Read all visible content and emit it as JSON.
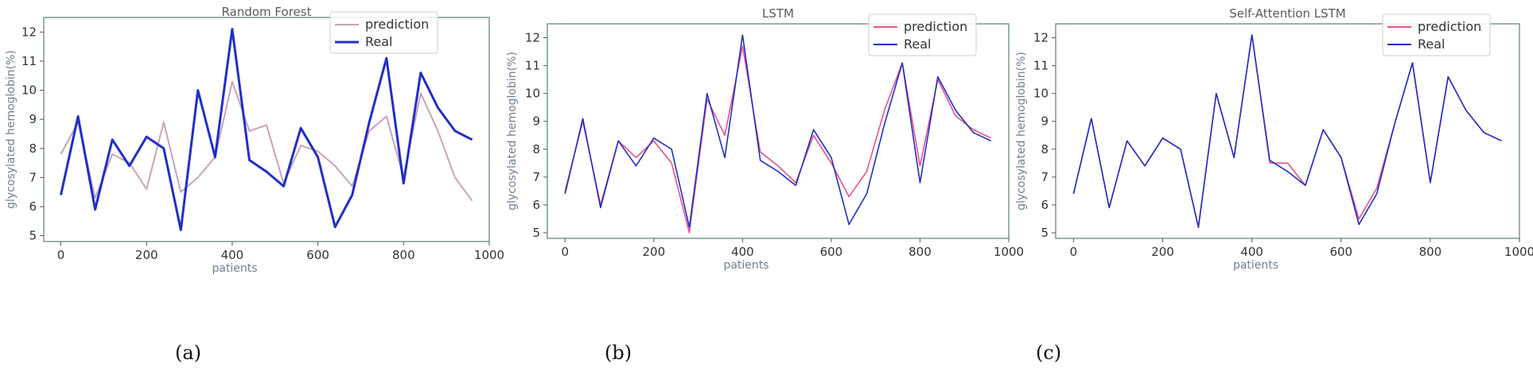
{
  "chart_data": [
    {
      "type": "line",
      "title": "Random Forest",
      "xlabel": "patients",
      "ylabel": "glycosylated hemoglobin(%)",
      "xlim": [
        -40,
        1000
      ],
      "ylim": [
        4.8,
        12.5
      ],
      "xticks": [
        0,
        200,
        400,
        600,
        800,
        1000
      ],
      "yticks": [
        5,
        6,
        7,
        8,
        9,
        10,
        11,
        12
      ],
      "legend": "top-right",
      "x": [
        0,
        40,
        80,
        120,
        160,
        200,
        240,
        280,
        320,
        360,
        400,
        440,
        480,
        520,
        560,
        600,
        640,
        680,
        720,
        760,
        800,
        840,
        880,
        920,
        960
      ],
      "series": [
        {
          "name": "prediction",
          "color": "#c9a3b8",
          "values": [
            7.8,
            8.9,
            6.3,
            7.8,
            7.5,
            6.6,
            8.9,
            6.5,
            7.0,
            7.7,
            10.3,
            8.6,
            8.8,
            6.8,
            8.1,
            7.9,
            7.4,
            6.7,
            8.6,
            9.1,
            7.0,
            9.9,
            8.6,
            7.0,
            6.2
          ],
          "width": 2
        },
        {
          "name": "Real",
          "color": "#1f2fc8",
          "values": [
            6.4,
            9.1,
            5.9,
            8.3,
            7.4,
            8.4,
            8.0,
            5.2,
            10.0,
            7.7,
            12.1,
            7.6,
            7.2,
            6.7,
            8.7,
            7.7,
            5.3,
            6.4,
            8.9,
            11.1,
            6.8,
            10.6,
            9.4,
            8.6,
            8.3
          ],
          "width": 3
        }
      ],
      "caption": "(a)"
    },
    {
      "type": "line",
      "title": "LSTM",
      "xlabel": "patients",
      "ylabel": "glycosylated hemoglobin(%)",
      "xlim": [
        -40,
        1000
      ],
      "ylim": [
        4.8,
        12.5
      ],
      "xticks": [
        0,
        200,
        400,
        600,
        800,
        1000
      ],
      "yticks": [
        5,
        6,
        7,
        8,
        9,
        10,
        11,
        12
      ],
      "legend": "top-right",
      "x": [
        0,
        40,
        80,
        120,
        160,
        200,
        240,
        280,
        320,
        360,
        400,
        440,
        480,
        520,
        560,
        600,
        640,
        680,
        720,
        760,
        800,
        840,
        880,
        920,
        960
      ],
      "series": [
        {
          "name": "prediction",
          "color": "#e8508a",
          "values": [
            6.5,
            9.0,
            6.0,
            8.3,
            7.7,
            8.3,
            7.5,
            5.0,
            9.8,
            8.5,
            11.7,
            7.9,
            7.4,
            6.8,
            8.5,
            7.5,
            6.3,
            7.2,
            9.4,
            11.1,
            7.4,
            10.5,
            9.2,
            8.7,
            8.4
          ],
          "width": 1.6
        },
        {
          "name": "Real",
          "color": "#1f2fc8",
          "values": [
            6.4,
            9.1,
            5.9,
            8.3,
            7.4,
            8.4,
            8.0,
            5.2,
            10.0,
            7.7,
            12.1,
            7.6,
            7.2,
            6.7,
            8.7,
            7.7,
            5.3,
            6.4,
            8.9,
            11.1,
            6.8,
            10.6,
            9.4,
            8.6,
            8.3
          ],
          "width": 1.6
        }
      ],
      "caption": "(b)"
    },
    {
      "type": "line",
      "title": "Self-Attention LSTM",
      "xlabel": "patients",
      "ylabel": "glycosylated hemoglobin(%)",
      "xlim": [
        -40,
        1000
      ],
      "ylim": [
        4.8,
        12.5
      ],
      "xticks": [
        0,
        200,
        400,
        600,
        800,
        1000
      ],
      "yticks": [
        5,
        6,
        7,
        8,
        9,
        10,
        11,
        12
      ],
      "legend": "top-right",
      "x": [
        0,
        40,
        80,
        120,
        160,
        200,
        240,
        280,
        320,
        360,
        400,
        440,
        480,
        520,
        560,
        600,
        640,
        680,
        720,
        760,
        800,
        840,
        880,
        920,
        960
      ],
      "series": [
        {
          "name": "prediction",
          "color": "#e8508a",
          "values": [
            6.4,
            9.1,
            5.9,
            8.3,
            7.4,
            8.4,
            8.0,
            5.2,
            10.0,
            7.7,
            12.1,
            7.5,
            7.5,
            6.7,
            8.7,
            7.7,
            5.5,
            6.6,
            8.9,
            11.1,
            6.8,
            10.6,
            9.4,
            8.6,
            8.3
          ],
          "width": 1.6
        },
        {
          "name": "Real",
          "color": "#1f2fc8",
          "values": [
            6.4,
            9.1,
            5.9,
            8.3,
            7.4,
            8.4,
            8.0,
            5.2,
            10.0,
            7.7,
            12.1,
            7.6,
            7.2,
            6.7,
            8.7,
            7.7,
            5.3,
            6.4,
            8.9,
            11.1,
            6.8,
            10.6,
            9.4,
            8.6,
            8.3
          ],
          "width": 1.6
        }
      ],
      "caption": "(c)"
    }
  ]
}
